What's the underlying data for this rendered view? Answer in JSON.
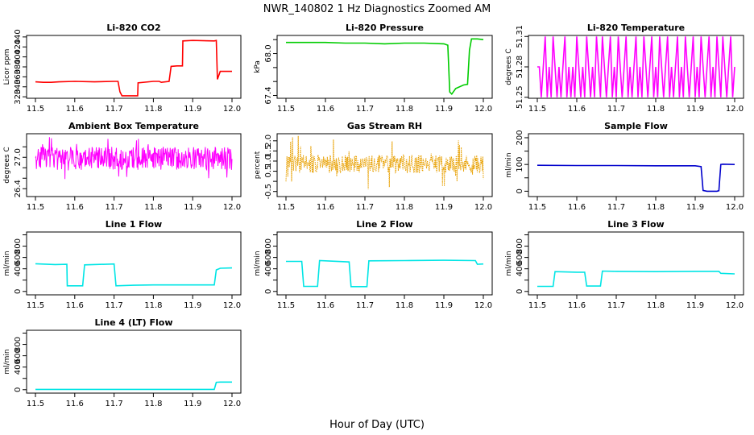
{
  "figure": {
    "title": "NWR_140802  1 Hz Diagnostics Zoomed AM",
    "xlabel": "Hour of Day (UTC)"
  },
  "chart_data": [
    {
      "type": "line",
      "title": "Li-820 CO2",
      "ylabel": "Licor ppm",
      "color": "#ff0000",
      "xlim": [
        11.5,
        12.0
      ],
      "ylim": [
        317,
        443
      ],
      "xticks": [
        "11.5",
        "11.6",
        "11.7",
        "11.8",
        "11.9",
        "12.0"
      ],
      "yticks": [
        [
          "320",
          "320"
        ],
        [
          "340",
          "340"
        ],
        [
          "360",
          "360"
        ],
        [
          "380",
          "380"
        ],
        [
          "400",
          "400"
        ],
        [
          "420",
          "420"
        ],
        [
          "440",
          "440"
        ]
      ],
      "x": [
        11.5,
        11.52,
        11.54,
        11.56,
        11.6,
        11.65,
        11.7,
        11.71,
        11.715,
        11.72,
        11.75,
        11.76,
        11.761,
        11.8,
        11.81,
        11.815,
        11.82,
        11.84,
        11.845,
        11.86,
        11.87,
        11.874,
        11.875,
        11.9,
        11.955,
        11.96,
        11.963,
        11.97,
        11.99,
        12.0
      ],
      "y": [
        350,
        349,
        349,
        350,
        351,
        350,
        351,
        351,
        330,
        322,
        322,
        322,
        348,
        351,
        351,
        351,
        349,
        351,
        381,
        382,
        382,
        382,
        432,
        433,
        432,
        433,
        355,
        371,
        371,
        371
      ]
    },
    {
      "type": "line",
      "title": "Li-820 Pressure",
      "ylabel": "kPa",
      "color": "#00cc00",
      "xlim": [
        11.5,
        12.0
      ],
      "ylim": [
        67.36,
        68.26
      ],
      "xticks": [
        "11.5",
        "11.6",
        "11.7",
        "11.8",
        "11.9",
        "12.0"
      ],
      "yticks": [
        [
          "67.4",
          "67.4"
        ],
        [
          "67.6",
          ""
        ],
        [
          "67.8",
          ""
        ],
        [
          "68.0",
          "68.0"
        ],
        [
          "68.2",
          ""
        ]
      ],
      "x": [
        11.5,
        11.55,
        11.6,
        11.65,
        11.7,
        11.75,
        11.8,
        11.85,
        11.9,
        11.91,
        11.915,
        11.92,
        11.93,
        11.95,
        11.96,
        11.965,
        11.97,
        11.985,
        12.0
      ],
      "y": [
        68.16,
        68.16,
        68.16,
        68.15,
        68.15,
        68.14,
        68.15,
        68.15,
        68.14,
        68.12,
        67.45,
        67.42,
        67.5,
        67.55,
        67.56,
        68.05,
        68.21,
        68.21,
        68.2
      ]
    },
    {
      "type": "line",
      "title": "Li-820 Temperature",
      "ylabel": "degrees C",
      "color": "#ff00ff",
      "xlim": [
        11.5,
        12.0
      ],
      "ylim": [
        51.249,
        51.311
      ],
      "xticks": [
        "11.5",
        "11.6",
        "11.7",
        "11.8",
        "11.9",
        "12.0"
      ],
      "yticks": [
        [
          "51.25",
          "51.25"
        ],
        [
          "51.28",
          "51.28"
        ],
        [
          "51.31",
          "51.31"
        ]
      ],
      "x": [
        11.5,
        11.505,
        11.51,
        11.515,
        11.52,
        11.525,
        11.53,
        11.535,
        11.54,
        11.545,
        11.55,
        11.555,
        11.56,
        11.565,
        11.57,
        11.575,
        11.58,
        11.585,
        11.59,
        11.595,
        11.6,
        11.605,
        11.61,
        11.615,
        11.62,
        11.625,
        11.63,
        11.635,
        11.64,
        11.645,
        11.65,
        11.655,
        11.66,
        11.665,
        11.67,
        11.675,
        11.68,
        11.685,
        11.69,
        11.695,
        11.7,
        11.705,
        11.71,
        11.715,
        11.72,
        11.725,
        11.73,
        11.735,
        11.74,
        11.745,
        11.75,
        11.755,
        11.76,
        11.765,
        11.77,
        11.775,
        11.78,
        11.785,
        11.79,
        11.795,
        11.8,
        11.805,
        11.81,
        11.815,
        11.82,
        11.825,
        11.83,
        11.835,
        11.84,
        11.845,
        11.85,
        11.855,
        11.86,
        11.865,
        11.87,
        11.875,
        11.88,
        11.885,
        11.89,
        11.895,
        11.9,
        11.905,
        11.91,
        11.915,
        11.92,
        11.925,
        11.93,
        11.935,
        11.94,
        11.945,
        11.95,
        11.955,
        11.96,
        11.965,
        11.97,
        11.975,
        11.98,
        11.985,
        11.99,
        11.995,
        12.0
      ],
      "y": [
        51.28,
        51.28,
        51.25,
        51.28,
        51.31,
        51.25,
        51.28,
        51.25,
        51.31,
        51.28,
        51.25,
        51.28,
        51.25,
        51.28,
        51.31,
        51.25,
        51.28,
        51.25,
        51.28,
        51.25,
        51.31,
        51.28,
        51.25,
        51.28,
        51.25,
        51.31,
        51.28,
        51.25,
        51.28,
        51.25,
        51.31,
        51.28,
        51.25,
        51.31,
        51.28,
        51.25,
        51.28,
        51.31,
        51.25,
        51.28,
        51.25,
        51.31,
        51.28,
        51.25,
        51.28,
        51.31,
        51.25,
        51.28,
        51.25,
        51.28,
        51.31,
        51.25,
        51.28,
        51.25,
        51.31,
        51.28,
        51.25,
        51.28,
        51.31,
        51.25,
        51.28,
        51.25,
        51.31,
        51.28,
        51.25,
        51.28,
        51.31,
        51.25,
        51.28,
        51.25,
        51.28,
        51.31,
        51.25,
        51.28,
        51.25,
        51.31,
        51.28,
        51.25,
        51.28,
        51.31,
        51.25,
        51.28,
        51.25,
        51.31,
        51.28,
        51.25,
        51.28,
        51.31,
        51.25,
        51.28,
        51.25,
        51.31,
        51.28,
        51.25,
        51.31,
        51.28,
        51.25,
        51.28,
        51.31,
        51.25,
        51.28
      ]
    },
    {
      "type": "line",
      "title": "Ambient Box Temperature",
      "ylabel": "degrees C",
      "color": "#ff00ff",
      "xlim": [
        11.5,
        12.0
      ],
      "ylim": [
        26.25,
        27.45
      ],
      "xticks": [
        "11.5",
        "11.6",
        "11.7",
        "11.8",
        "11.9",
        "12.0"
      ],
      "yticks": [
        [
          "26.4",
          "26.4"
        ],
        [
          "26.6",
          ""
        ],
        [
          "26.8",
          ""
        ],
        [
          "27.0",
          "27.0"
        ],
        [
          "27.2",
          ""
        ]
      ],
      "band": {
        "center": 26.98,
        "amplitude": 0.22,
        "spikes": 0.45
      }
    },
    {
      "type": "line",
      "title": "Gas Stream RH",
      "ylabel": "percent",
      "color": "#e8a000",
      "xlim": [
        11.5,
        12.0
      ],
      "ylim": [
        -0.75,
        2.35
      ],
      "xticks": [
        "11.5",
        "11.6",
        "11.7",
        "11.8",
        "11.9",
        "12.0"
      ],
      "yticks": [
        [
          "-0.5",
          "-0.5"
        ],
        [
          "0.0",
          ""
        ],
        [
          "0.5",
          "0.5"
        ],
        [
          "1.0",
          "1.0"
        ],
        [
          "1.5",
          "1.5"
        ],
        [
          "2.0",
          "2.0"
        ]
      ],
      "band": {
        "center": 0.85,
        "amplitude": 0.45,
        "spikes": 1.4
      }
    },
    {
      "type": "line",
      "title": "Sample Flow",
      "ylabel": "ml/min",
      "color": "#0000cc",
      "xlim": [
        11.5,
        12.0
      ],
      "ylim": [
        -20,
        215
      ],
      "xticks": [
        "11.5",
        "11.6",
        "11.7",
        "11.8",
        "11.9",
        "12.0"
      ],
      "yticks": [
        [
          "0",
          "0"
        ],
        [
          "50",
          ""
        ],
        [
          "100",
          "100"
        ],
        [
          "150",
          ""
        ],
        [
          "200",
          "200"
        ]
      ],
      "x": [
        11.5,
        11.6,
        11.7,
        11.8,
        11.9,
        11.915,
        11.92,
        11.93,
        11.955,
        11.96,
        11.965,
        11.97,
        12.0
      ],
      "y": [
        97,
        96,
        96,
        95,
        95,
        92,
        3,
        0,
        0,
        2,
        100,
        101,
        100
      ]
    },
    {
      "type": "line",
      "title": "Line 1 Flow",
      "ylabel": "ml/min",
      "color": "#00e5e5",
      "xlim": [
        11.5,
        12.0
      ],
      "ylim": [
        -60,
        1050
      ],
      "xticks": [
        "11.5",
        "11.6",
        "11.7",
        "11.8",
        "11.9",
        "12.0"
      ],
      "yticks": [
        [
          "0",
          "0"
        ],
        [
          "200",
          ""
        ],
        [
          "400",
          "400"
        ],
        [
          "600",
          "600"
        ],
        [
          "800",
          "800"
        ],
        [
          "1000",
          ""
        ]
      ],
      "x": [
        11.5,
        11.55,
        11.58,
        11.581,
        11.62,
        11.625,
        11.7,
        11.705,
        11.75,
        11.8,
        11.9,
        11.955,
        11.96,
        11.97,
        12.0
      ],
      "y": [
        490,
        475,
        480,
        100,
        100,
        470,
        485,
        100,
        110,
        115,
        115,
        115,
        380,
        410,
        415
      ]
    },
    {
      "type": "line",
      "title": "Line 2 Flow",
      "ylabel": "ml/min",
      "color": "#00e5e5",
      "xlim": [
        11.5,
        12.0
      ],
      "ylim": [
        -60,
        1050
      ],
      "xticks": [
        "11.5",
        "11.6",
        "11.7",
        "11.8",
        "11.9",
        "12.0"
      ],
      "yticks": [
        [
          "0",
          "0"
        ],
        [
          "200",
          ""
        ],
        [
          "400",
          "400"
        ],
        [
          "600",
          "600"
        ],
        [
          "800",
          "800"
        ],
        [
          "1000",
          ""
        ]
      ],
      "x": [
        11.5,
        11.54,
        11.545,
        11.58,
        11.585,
        11.66,
        11.665,
        11.705,
        11.71,
        11.8,
        11.9,
        11.98,
        11.985,
        12.0
      ],
      "y": [
        530,
        530,
        90,
        90,
        545,
        520,
        85,
        85,
        540,
        545,
        550,
        545,
        480,
        485
      ]
    },
    {
      "type": "line",
      "title": "Line 3 Flow",
      "ylabel": "ml/min",
      "color": "#00e5e5",
      "xlim": [
        11.5,
        12.0
      ],
      "ylim": [
        -60,
        1050
      ],
      "xticks": [
        "11.5",
        "11.6",
        "11.7",
        "11.8",
        "11.9",
        "12.0"
      ],
      "yticks": [
        [
          "0",
          "0"
        ],
        [
          "200",
          ""
        ],
        [
          "400",
          "400"
        ],
        [
          "600",
          "600"
        ],
        [
          "800",
          "800"
        ],
        [
          "1000",
          ""
        ]
      ],
      "x": [
        11.5,
        11.54,
        11.545,
        11.6,
        11.62,
        11.625,
        11.66,
        11.665,
        11.7,
        11.8,
        11.9,
        11.96,
        11.965,
        12.0
      ],
      "y": [
        90,
        90,
        350,
        340,
        340,
        95,
        95,
        360,
        355,
        350,
        355,
        355,
        320,
        310
      ]
    },
    {
      "type": "line",
      "title": "Line 4 (LT) Flow",
      "ylabel": "ml/min",
      "color": "#00e5e5",
      "xlim": [
        11.5,
        12.0
      ],
      "ylim": [
        -60,
        1050
      ],
      "xticks": [
        "11.5",
        "11.6",
        "11.7",
        "11.8",
        "11.9",
        "12.0"
      ],
      "yticks": [
        [
          "0",
          "0"
        ],
        [
          "200",
          ""
        ],
        [
          "400",
          "400"
        ],
        [
          "600",
          "600"
        ],
        [
          "800",
          "800"
        ],
        [
          "1000",
          ""
        ]
      ],
      "x": [
        11.5,
        11.6,
        11.7,
        11.8,
        11.9,
        11.955,
        11.96,
        11.97,
        12.0
      ],
      "y": [
        5,
        5,
        5,
        5,
        5,
        5,
        130,
        135,
        135
      ]
    }
  ]
}
